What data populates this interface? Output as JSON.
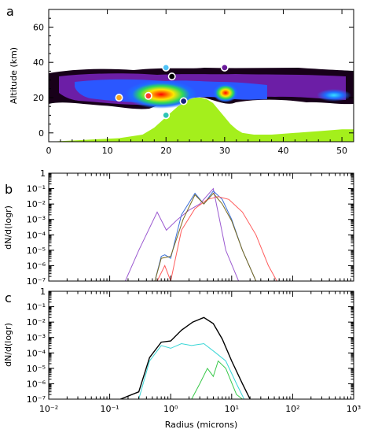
{
  "chart_data": [
    {
      "panel": "a",
      "type": "heatmap",
      "xlabel": "",
      "ylabel": "Altitude (km)",
      "xlim": [
        0,
        52
      ],
      "ylim": [
        -5,
        70
      ],
      "xticks": [
        0,
        10,
        20,
        30,
        40,
        50
      ],
      "yticks": [
        0,
        20,
        40,
        60
      ],
      "colors": {
        "terrain": "#a4ef1c",
        "cloud_edge": "#1a0020",
        "cloud_mid": "#6a1fa8",
        "cloud_core": "#ff1a00"
      },
      "terrain": {
        "x": [
          0,
          3,
          6,
          9,
          12,
          14,
          16,
          17,
          18,
          19,
          20,
          21,
          22,
          23,
          24,
          25,
          26,
          27,
          28,
          29,
          30,
          31,
          32,
          33,
          35,
          38,
          42,
          46,
          50,
          52
        ],
        "y": [
          -5,
          -4.5,
          -4,
          -3.5,
          -3,
          -2,
          -1,
          1,
          3,
          6,
          9,
          12,
          15,
          17,
          19,
          20,
          20,
          19,
          17,
          13,
          9,
          5,
          2,
          0,
          -1,
          -1,
          0,
          1,
          2,
          2
        ]
      },
      "markers": [
        {
          "x": 12,
          "y": 20,
          "color": "#f5a623"
        },
        {
          "x": 17,
          "y": 21,
          "color": "#ff3b30"
        },
        {
          "x": 20,
          "y": 10,
          "color": "#2ec4b6"
        },
        {
          "x": 20,
          "y": 37,
          "color": "#4fc3f7"
        },
        {
          "x": 21,
          "y": 32,
          "color": "#000000"
        },
        {
          "x": 23,
          "y": 18,
          "color": "#1a237e"
        },
        {
          "x": 30,
          "y": 37,
          "color": "#6a1b9a"
        }
      ]
    },
    {
      "panel": "b",
      "type": "line",
      "xlabel": "",
      "ylabel": "dN/d(logr)",
      "xscale": "log",
      "yscale": "log",
      "xlim": [
        0.01,
        1000
      ],
      "ylim": [
        1e-07,
        1
      ],
      "ytick_labels": [
        "10⁻⁷",
        "10⁻⁶",
        "10⁻⁵",
        "10⁻⁴",
        "10⁻³",
        "10⁻²",
        "10⁻¹",
        "1"
      ],
      "series": [
        {
          "color": "#9b59d0",
          "x": [
            0.18,
            0.3,
            0.6,
            0.85,
            1.3,
            2.0,
            3.0,
            5.0,
            8.0,
            13.0
          ],
          "y": [
            1e-07,
            1e-05,
            0.003,
            0.0002,
            0.001,
            0.004,
            0.01,
            0.1,
            1e-05,
            1e-07
          ]
        },
        {
          "color": "#3b6fd8",
          "x": [
            0.55,
            0.7,
            0.8,
            1.0,
            1.5,
            2.5,
            3.5,
            5.0,
            7.0,
            10.0,
            15.0,
            25.0,
            38.0
          ],
          "y": [
            1e-07,
            4e-06,
            5e-06,
            3e-06,
            0.002,
            0.05,
            0.01,
            0.07,
            0.02,
            0.001,
            1e-05,
            1e-07,
            1e-07
          ]
        },
        {
          "color": "#ff5b5b",
          "x": [
            0.6,
            0.8,
            1.0,
            1.5,
            2.5,
            4.0,
            6.0,
            9.0,
            15.0,
            25.0,
            40.0,
            55.0
          ],
          "y": [
            1e-07,
            1e-06,
            1e-07,
            0.0002,
            0.005,
            0.02,
            0.03,
            0.02,
            0.003,
            0.0001,
            1e-06,
            1e-07
          ]
        },
        {
          "color": "#7a6a1e",
          "x": [
            0.55,
            0.7,
            1.0,
            1.6,
            2.5,
            3.5,
            5.0,
            7.0,
            10.0,
            15.0,
            25.0,
            38.0
          ],
          "y": [
            1e-07,
            3e-06,
            4e-06,
            0.001,
            0.04,
            0.01,
            0.05,
            0.01,
            0.0008,
            1e-05,
            1e-07,
            1e-07
          ]
        }
      ]
    },
    {
      "panel": "c",
      "type": "line",
      "xlabel": "Radius (microns)",
      "ylabel": "dN/d(logr)",
      "xscale": "log",
      "yscale": "log",
      "xlim": [
        0.01,
        1000
      ],
      "ylim": [
        1e-07,
        1
      ],
      "xtick_labels": [
        "10⁻²",
        "10⁻¹",
        "10⁰",
        "10¹",
        "10²",
        "10³"
      ],
      "ytick_labels": [
        "10⁻⁷",
        "10⁻⁶",
        "10⁻⁵",
        "10⁻⁴",
        "10⁻³",
        "10⁻²",
        "10⁻¹",
        "1"
      ],
      "series": [
        {
          "color": "#000000",
          "x": [
            0.15,
            0.3,
            0.45,
            0.7,
            1.0,
            1.5,
            2.3,
            3.5,
            5.0,
            7.0,
            10.0,
            15.0,
            20.0
          ],
          "y": [
            1e-07,
            3e-07,
            5e-05,
            0.0005,
            0.0006,
            0.003,
            0.01,
            0.02,
            0.008,
            0.0008,
            3e-05,
            1e-06,
            1e-07
          ]
        },
        {
          "color": "#39d6d6",
          "x": [
            0.3,
            0.45,
            0.7,
            1.0,
            1.5,
            2.2,
            3.5,
            5.5,
            8.0,
            12.0,
            16.0
          ],
          "y": [
            1e-07,
            3e-05,
            0.0003,
            0.0002,
            0.0004,
            0.0003,
            0.0004,
            0.0001,
            3e-05,
            1e-06,
            1e-07
          ]
        },
        {
          "color": "#39c84a",
          "x": [
            2.2,
            3.0,
            4.0,
            5.0,
            6.0,
            8.0,
            12.0,
            15.0
          ],
          "y": [
            1e-07,
            1e-06,
            1e-05,
            3e-06,
            3e-05,
            1e-05,
            2e-07,
            1e-07
          ]
        }
      ]
    }
  ]
}
